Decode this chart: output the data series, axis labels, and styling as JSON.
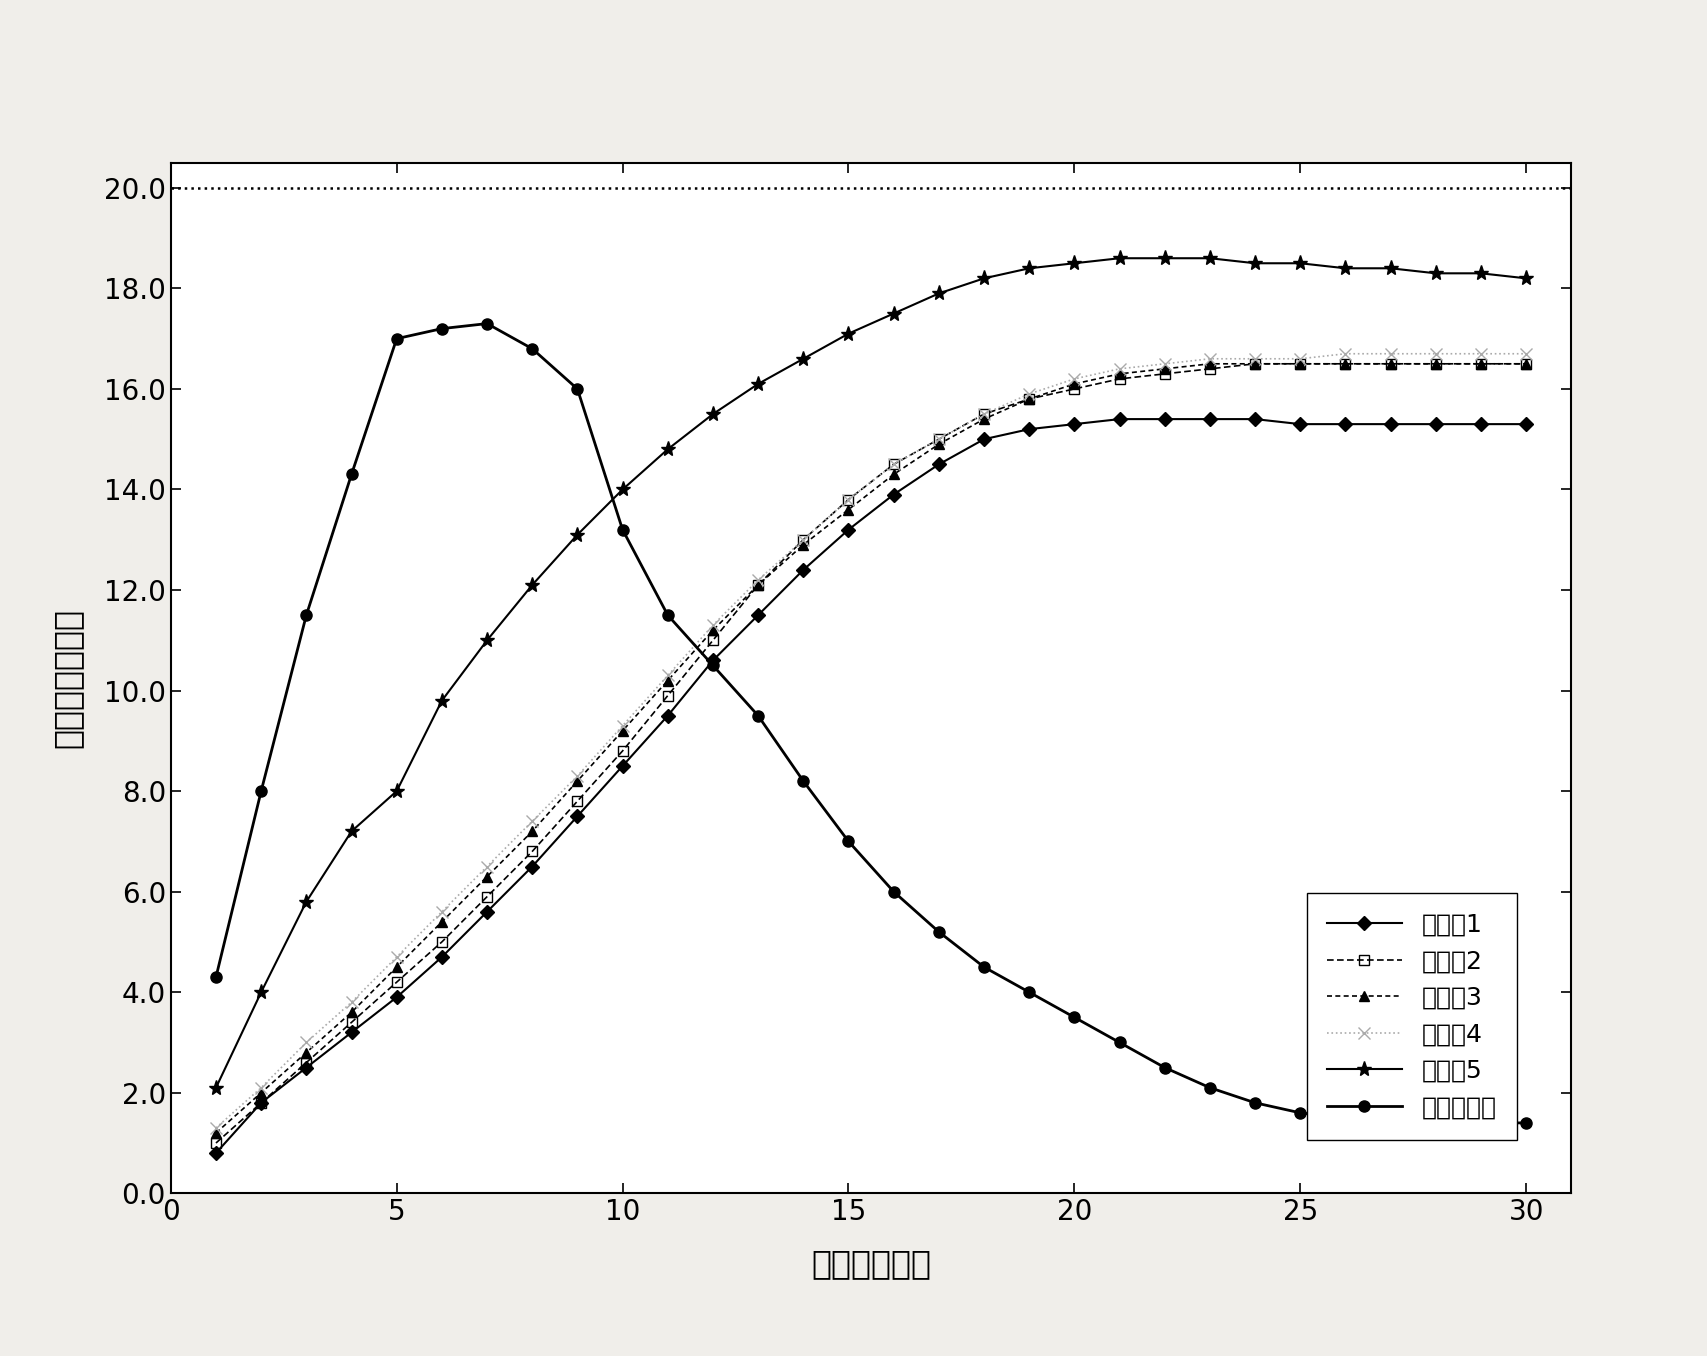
{
  "title": "",
  "xlabel": "时间（分钟）",
  "ylabel": "泡沫量（毫升）",
  "xlim": [
    0,
    31
  ],
  "ylim": [
    0,
    20.5
  ],
  "xticks": [
    0,
    5,
    10,
    15,
    20,
    25,
    30
  ],
  "yticks": [
    0.0,
    2.0,
    4.0,
    6.0,
    8.0,
    10.0,
    12.0,
    14.0,
    16.0,
    18.0,
    20.0
  ],
  "background_color": "#f0eeea",
  "plot_bg_color": "#ffffff",
  "series": [
    {
      "label": "实施例1",
      "x": [
        1,
        2,
        3,
        4,
        5,
        6,
        7,
        8,
        9,
        10,
        11,
        12,
        13,
        14,
        15,
        16,
        17,
        18,
        19,
        20,
        21,
        22,
        23,
        24,
        25,
        26,
        27,
        28,
        29,
        30
      ],
      "y": [
        0.8,
        1.8,
        2.5,
        3.2,
        3.9,
        4.7,
        5.6,
        6.5,
        7.5,
        8.5,
        9.5,
        10.6,
        11.5,
        12.4,
        13.2,
        13.9,
        14.5,
        15.0,
        15.2,
        15.3,
        15.4,
        15.4,
        15.4,
        15.4,
        15.3,
        15.3,
        15.3,
        15.3,
        15.3,
        15.3
      ],
      "linestyle": "-",
      "marker": "D",
      "markersize": 7,
      "color": "#000000",
      "linewidth": 1.5,
      "markerfacecolor": "#000000"
    },
    {
      "label": "实施例2",
      "x": [
        1,
        2,
        3,
        4,
        5,
        6,
        7,
        8,
        9,
        10,
        11,
        12,
        13,
        14,
        15,
        16,
        17,
        18,
        19,
        20,
        21,
        22,
        23,
        24,
        25,
        26,
        27,
        28,
        29,
        30
      ],
      "y": [
        1.0,
        1.8,
        2.6,
        3.4,
        4.2,
        5.0,
        5.9,
        6.8,
        7.8,
        8.8,
        9.9,
        11.0,
        12.1,
        13.0,
        13.8,
        14.5,
        15.0,
        15.5,
        15.8,
        16.0,
        16.2,
        16.3,
        16.4,
        16.5,
        16.5,
        16.5,
        16.5,
        16.5,
        16.5,
        16.5
      ],
      "linestyle": "--",
      "marker": "s",
      "markersize": 7,
      "color": "#000000",
      "linewidth": 1.2,
      "markerfacecolor": "none",
      "dashes": [
        4,
        2
      ]
    },
    {
      "label": "实施例3",
      "x": [
        1,
        2,
        3,
        4,
        5,
        6,
        7,
        8,
        9,
        10,
        11,
        12,
        13,
        14,
        15,
        16,
        17,
        18,
        19,
        20,
        21,
        22,
        23,
        24,
        25,
        26,
        27,
        28,
        29,
        30
      ],
      "y": [
        1.2,
        2.0,
        2.8,
        3.6,
        4.5,
        5.4,
        6.3,
        7.2,
        8.2,
        9.2,
        10.2,
        11.2,
        12.1,
        12.9,
        13.6,
        14.3,
        14.9,
        15.4,
        15.8,
        16.1,
        16.3,
        16.4,
        16.5,
        16.5,
        16.5,
        16.5,
        16.5,
        16.5,
        16.5,
        16.5
      ],
      "linestyle": "--",
      "marker": "^",
      "markersize": 7,
      "color": "#000000",
      "linewidth": 1.2,
      "markerfacecolor": "#000000",
      "dashes": [
        3,
        2
      ]
    },
    {
      "label": "实施例4",
      "x": [
        1,
        2,
        3,
        4,
        5,
        6,
        7,
        8,
        9,
        10,
        11,
        12,
        13,
        14,
        15,
        16,
        17,
        18,
        19,
        20,
        21,
        22,
        23,
        24,
        25,
        26,
        27,
        28,
        29,
        30
      ],
      "y": [
        1.3,
        2.1,
        3.0,
        3.8,
        4.7,
        5.6,
        6.5,
        7.4,
        8.3,
        9.3,
        10.3,
        11.3,
        12.2,
        13.0,
        13.8,
        14.5,
        15.0,
        15.5,
        15.9,
        16.2,
        16.4,
        16.5,
        16.6,
        16.6,
        16.6,
        16.7,
        16.7,
        16.7,
        16.7,
        16.7
      ],
      "linestyle": ":",
      "marker": "x",
      "markersize": 8,
      "color": "#aaaaaa",
      "linewidth": 1.2,
      "markerfacecolor": "#aaaaaa"
    },
    {
      "label": "实施例5",
      "x": [
        1,
        2,
        3,
        4,
        5,
        6,
        7,
        8,
        9,
        10,
        11,
        12,
        13,
        14,
        15,
        16,
        17,
        18,
        19,
        20,
        21,
        22,
        23,
        24,
        25,
        26,
        27,
        28,
        29,
        30
      ],
      "y": [
        2.1,
        4.0,
        5.8,
        7.2,
        8.0,
        9.8,
        11.0,
        12.1,
        13.1,
        14.0,
        14.8,
        15.5,
        16.1,
        16.6,
        17.1,
        17.5,
        17.9,
        18.2,
        18.4,
        18.5,
        18.6,
        18.6,
        18.6,
        18.5,
        18.5,
        18.4,
        18.4,
        18.3,
        18.3,
        18.2
      ],
      "linestyle": "-",
      "marker": "*",
      "markersize": 11,
      "color": "#000000",
      "linewidth": 1.5,
      "markerfacecolor": "#000000"
    },
    {
      "label": "对比实施例",
      "x": [
        1,
        2,
        3,
        4,
        5,
        6,
        7,
        8,
        9,
        10,
        11,
        12,
        13,
        14,
        15,
        16,
        17,
        18,
        19,
        20,
        21,
        22,
        23,
        24,
        25,
        26,
        27,
        28,
        29,
        30
      ],
      "y": [
        4.3,
        8.0,
        11.5,
        14.3,
        17.0,
        17.2,
        17.3,
        16.8,
        16.0,
        13.2,
        11.5,
        10.5,
        9.5,
        8.2,
        7.0,
        6.0,
        5.2,
        4.5,
        4.0,
        3.5,
        3.0,
        2.5,
        2.1,
        1.8,
        1.6,
        1.5,
        1.5,
        1.4,
        1.4,
        1.4
      ],
      "linestyle": "-",
      "marker": "o",
      "markersize": 8,
      "color": "#000000",
      "linewidth": 2.0,
      "markerfacecolor": "#000000"
    }
  ],
  "dotted_top_line_y": 20.0,
  "legend_fontsize": 18,
  "axis_label_fontsize": 24,
  "tick_fontsize": 20
}
